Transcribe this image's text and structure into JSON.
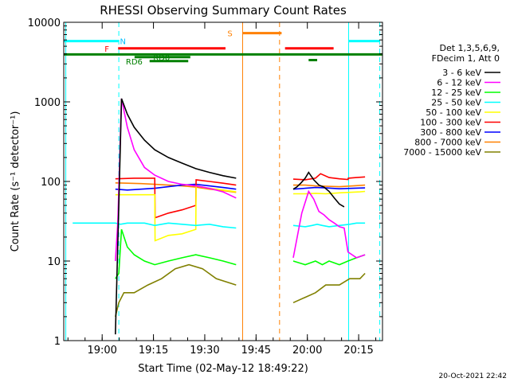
{
  "chart_data": {
    "type": "line",
    "title": "RHESSI Observing Summary Count Rates",
    "xlabel": "Start Time (02-May-12 18:49:22)",
    "ylabel": "Count Rate (s⁻¹ detector⁻¹)",
    "y_scale": "log",
    "ylim": [
      1,
      10000
    ],
    "xlim_minutes": [
      -0.6,
      92.6
    ],
    "grid": false,
    "legend_position": "right",
    "x_ticks": [
      {
        "minute": 10.63,
        "label": "19:00"
      },
      {
        "minute": 25.63,
        "label": "19:15"
      },
      {
        "minute": 40.63,
        "label": "19:30"
      },
      {
        "minute": 55.63,
        "label": "19:45"
      },
      {
        "minute": 70.63,
        "label": "20:00"
      },
      {
        "minute": 85.63,
        "label": "20:15"
      }
    ],
    "y_ticks": [
      {
        "value": 1,
        "label": "1"
      },
      {
        "value": 10,
        "label": "10"
      },
      {
        "value": 100,
        "label": "100"
      },
      {
        "value": 1000,
        "label": "1000"
      },
      {
        "value": 10000,
        "label": "10000"
      }
    ],
    "legend_header": [
      "Det 1,3,5,6,9,",
      "FDecim 1, Att 0"
    ],
    "series": [
      {
        "name": "3 - 6 keV",
        "color": "#000000",
        "segments": [
          {
            "x": [
              14.5,
              15.5,
              16.3,
              18,
              20,
              23,
              26,
              30,
              34,
              38,
              42,
              46,
              49.8
            ],
            "y": [
              1.2,
              50,
              1100,
              700,
              480,
              330,
              250,
              200,
              170,
              145,
              130,
              118,
              110
            ]
          },
          {
            "x": [
              66.5,
              67.5,
              68.7,
              70,
              71,
              72.5,
              74,
              75.5,
              77,
              78.5,
              80,
              81.4
            ],
            "y": [
              80,
              85,
              95,
              110,
              130,
              105,
              90,
              85,
              75,
              62,
              52,
              48
            ]
          }
        ]
      },
      {
        "name": "6 - 12 keV",
        "color": "#ff00ff",
        "segments": [
          {
            "x": [
              14.5,
              15.2,
              16.3,
              18,
              20,
              23,
              26,
              30,
              34,
              38,
              42,
              46,
              49.8
            ],
            "y": [
              10,
              30,
              1100,
              480,
              250,
              150,
              120,
              100,
              92,
              88,
              82,
              74,
              62
            ]
          },
          {
            "x": [
              66.5,
              69,
              71,
              72.5,
              74,
              75.5,
              77,
              78.5,
              80,
              81.4,
              82.5,
              85,
              87.5
            ],
            "y": [
              11,
              40,
              75,
              60,
              42,
              38,
              33,
              30,
              27,
              26,
              13,
              11,
              12
            ]
          }
        ]
      },
      {
        "name": "12 - 25 keV",
        "color": "#00ff00",
        "segments": [
          {
            "x": [
              14.5,
              15.5,
              16.3,
              18,
              20,
              23,
              26,
              30,
              34,
              38,
              42,
              46,
              49.8
            ],
            "y": [
              6,
              7,
              25,
              15,
              12,
              10,
              9,
              10,
              11,
              12,
              11,
              10,
              9
            ]
          },
          {
            "x": [
              66.5,
              70,
              73,
              75,
              77,
              80,
              82.5,
              85,
              87.5
            ],
            "y": [
              10,
              9,
              10,
              9,
              10,
              9,
              10,
              11,
              12
            ]
          }
        ]
      },
      {
        "name": "25 - 50 keV",
        "color": "#00ffff",
        "segments": [
          {
            "x": [
              2.0,
              14.5,
              16,
              18,
              20,
              23,
              26,
              30,
              34,
              38,
              42,
              46,
              49.8
            ],
            "y": [
              30,
              30,
              29,
              30,
              30,
              30,
              28,
              30,
              29,
              28,
              29,
              27,
              26
            ]
          },
          {
            "x": [
              66.5,
              70,
              72,
              73.5,
              75,
              77,
              80,
              83,
              85,
              87.5
            ],
            "y": [
              28,
              27,
              28,
              29,
              28,
              27,
              28,
              29,
              30,
              30
            ]
          }
        ]
      },
      {
        "name": "50 - 100 keV",
        "color": "#ffff00",
        "segments": [
          {
            "x": [
              14.5,
              20,
              26,
              26.1,
              30,
              34,
              38,
              38.1,
              42,
              46,
              49.8
            ],
            "y": [
              68,
              68,
              68,
              18,
              21,
              22,
              25,
              88,
              82,
              78,
              74
            ]
          },
          {
            "x": [
              66.5,
              70,
              73,
              76,
              80,
              83,
              86,
              87.5
            ],
            "y": [
              70,
              70,
              71,
              70,
              72,
              73,
              74,
              75
            ]
          }
        ]
      },
      {
        "name": "100 - 300 keV",
        "color": "#ff0000",
        "segments": [
          {
            "x": [
              14.5,
              20,
              26,
              26.1,
              30,
              34,
              38,
              38.1,
              42,
              46,
              49.8
            ],
            "y": [
              108,
              110,
              110,
              35,
              40,
              44,
              50,
              105,
              100,
              95,
              90
            ]
          },
          {
            "x": [
              66.5,
              70,
              73,
              74.5,
              77,
              80,
              82.5,
              82.6,
              85,
              87.5
            ],
            "y": [
              107,
              105,
              110,
              125,
              112,
              108,
              106,
              110,
              112,
              114
            ]
          }
        ]
      },
      {
        "name": "300 - 800 keV",
        "color": "#0000ff",
        "segments": [
          {
            "x": [
              14.5,
              18,
              22,
              26,
              30,
              34,
              38,
              42,
              46,
              49.8
            ],
            "y": [
              80,
              78,
              80,
              82,
              86,
              90,
              92,
              88,
              84,
              80
            ]
          },
          {
            "x": [
              66.5,
              70,
              73,
              76,
              80,
              84,
              87.5
            ],
            "y": [
              80,
              82,
              84,
              83,
              81,
              82,
              83
            ]
          }
        ]
      },
      {
        "name": "800 - 7000 keV",
        "color": "#ff8000",
        "segments": [
          {
            "x": [
              14.5,
              18,
              22,
              26,
              30,
              34,
              38,
              42,
              46,
              49.8
            ],
            "y": [
              96,
              95,
              94,
              92,
              90,
              88,
              85,
              80,
              77,
              73
            ]
          },
          {
            "x": [
              66.5,
              70,
              73,
              76,
              80,
              84,
              87.5
            ],
            "y": [
              90,
              90,
              88,
              87,
              86,
              88,
              90
            ]
          }
        ]
      },
      {
        "name": "7000 - 15000 keV",
        "color": "#808000",
        "segments": [
          {
            "x": [
              14.5,
              15.5,
              17,
              20,
              24,
              28,
              32,
              36,
              40,
              44,
              49.8
            ],
            "y": [
              2,
              3,
              4,
              4,
              5,
              6,
              8,
              9,
              8,
              6,
              5
            ]
          },
          {
            "x": [
              66.5,
              70,
              73,
              76,
              80,
              83,
              86,
              87.5
            ],
            "y": [
              3,
              3.5,
              4,
              5,
              5,
              6,
              6,
              7
            ]
          }
        ]
      }
    ],
    "vertical_markers": [
      {
        "minute": 0.0,
        "color": "#00ffff",
        "dash": false
      },
      {
        "minute": 15.5,
        "color": "#00ffff",
        "dash": true
      },
      {
        "minute": 51.7,
        "color": "#ff8000",
        "dash": false
      },
      {
        "minute": 62.5,
        "color": "#ff8000",
        "dash": true
      },
      {
        "minute": 82.7,
        "color": "#00ffff",
        "dash": false
      },
      {
        "minute": 91.8,
        "color": "#00ffff",
        "dash": true
      }
    ],
    "flag_bars": [
      {
        "label": "N",
        "color": "#00ffff",
        "y": 5800,
        "segments": [
          [
            -0.6,
            15.5
          ],
          [
            82.7,
            91.8
          ]
        ],
        "label_minute": 16.7,
        "label_color": "#00bfff"
      },
      {
        "label": "F",
        "color": "#ff0000",
        "y": 4700,
        "segments": [
          [
            15.3,
            46.7
          ],
          [
            64.1,
            78.3
          ]
        ],
        "label_minute": 12.0,
        "label_color": "#ff0000"
      },
      {
        "label": "S",
        "color": "#ff8000",
        "y": 7300,
        "segments": [
          [
            51.7,
            63.1
          ]
        ],
        "label_minute": 48.0,
        "label_color": "#ff8000"
      },
      {
        "label": "",
        "color": "#008000",
        "y": 3950,
        "segments": [
          [
            -0.6,
            92.6
          ]
        ],
        "label_minute": 0,
        "label_color": "#008000"
      },
      {
        "label": "RD0",
        "color": "#008000",
        "y": 3650,
        "segments": [
          [
            20.1,
            36.4
          ]
        ],
        "label_minute": 28.0,
        "label_color": "#008000"
      },
      {
        "label": "",
        "color": "#008000",
        "y": 3350,
        "segments": [
          [
            71.0,
            73.5
          ]
        ],
        "label_minute": 0,
        "label_color": "#008000"
      },
      {
        "label": "RD6",
        "color": "#008000",
        "y": 3250,
        "segments": [
          [
            24.5,
            35.8
          ]
        ],
        "label_minute": 20.0,
        "label_color": "#008000"
      }
    ]
  },
  "footer": {
    "timestamp": "20-Oct-2021 22:42"
  }
}
